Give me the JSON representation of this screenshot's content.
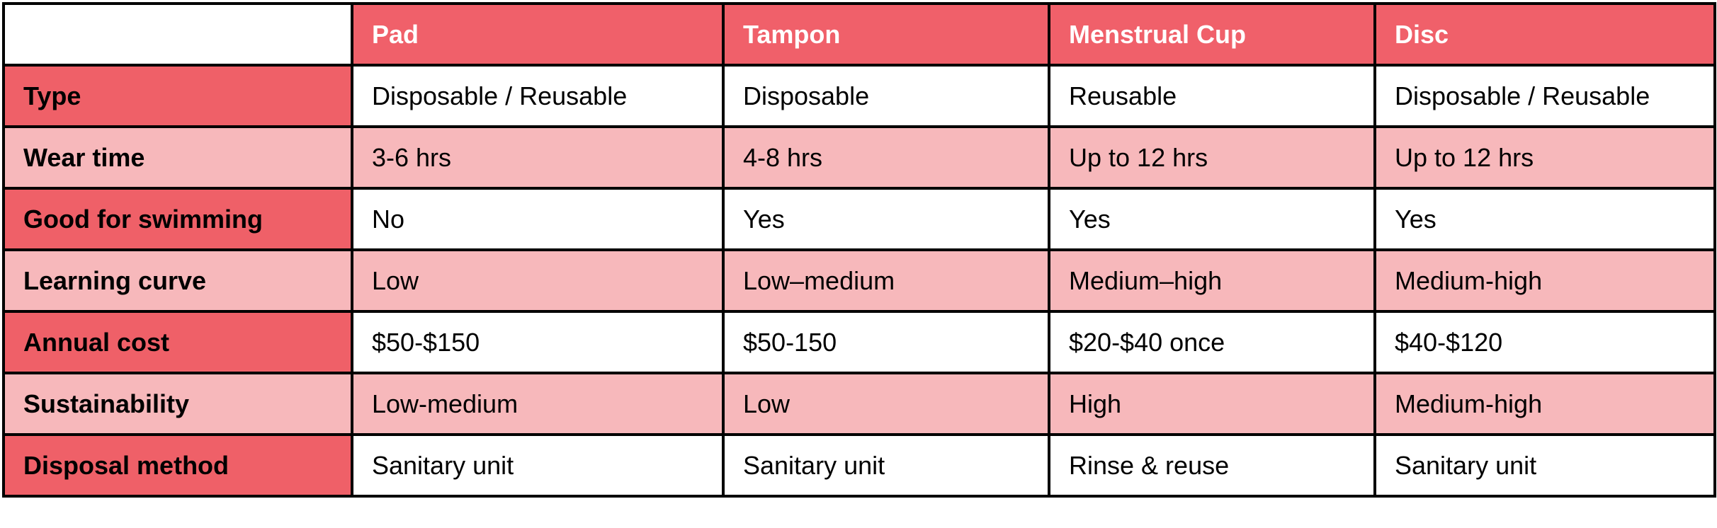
{
  "table": {
    "columns": [
      "Pad",
      "Tampon",
      "Menstrual Cup",
      "Disc"
    ],
    "rows": [
      {
        "label": "Type",
        "cells": [
          "Disposable / Reusable",
          "Disposable",
          "Reusable",
          "Disposable / Reusable"
        ]
      },
      {
        "label": "Wear time",
        "cells": [
          "3-6 hrs",
          "4-8 hrs",
          "Up to 12 hrs",
          "Up to 12 hrs"
        ]
      },
      {
        "label": "Good for swimming",
        "cells": [
          "No",
          "Yes",
          "Yes",
          "Yes"
        ]
      },
      {
        "label": "Learning curve",
        "cells": [
          "Low",
          "Low–medium",
          "Medium–high",
          "Medium-high"
        ]
      },
      {
        "label": "Annual cost",
        "cells": [
          "$50-$150",
          "$50-150",
          "$20-$40 once",
          "$40-$120"
        ]
      },
      {
        "label": "Sustainability",
        "cells": [
          "Low-medium",
          "Low",
          "High",
          "Medium-high"
        ]
      },
      {
        "label": "Disposal method",
        "cells": [
          "Sanitary unit",
          "Sanitary unit",
          "Rinse & reuse",
          "Sanitary unit"
        ]
      }
    ]
  }
}
